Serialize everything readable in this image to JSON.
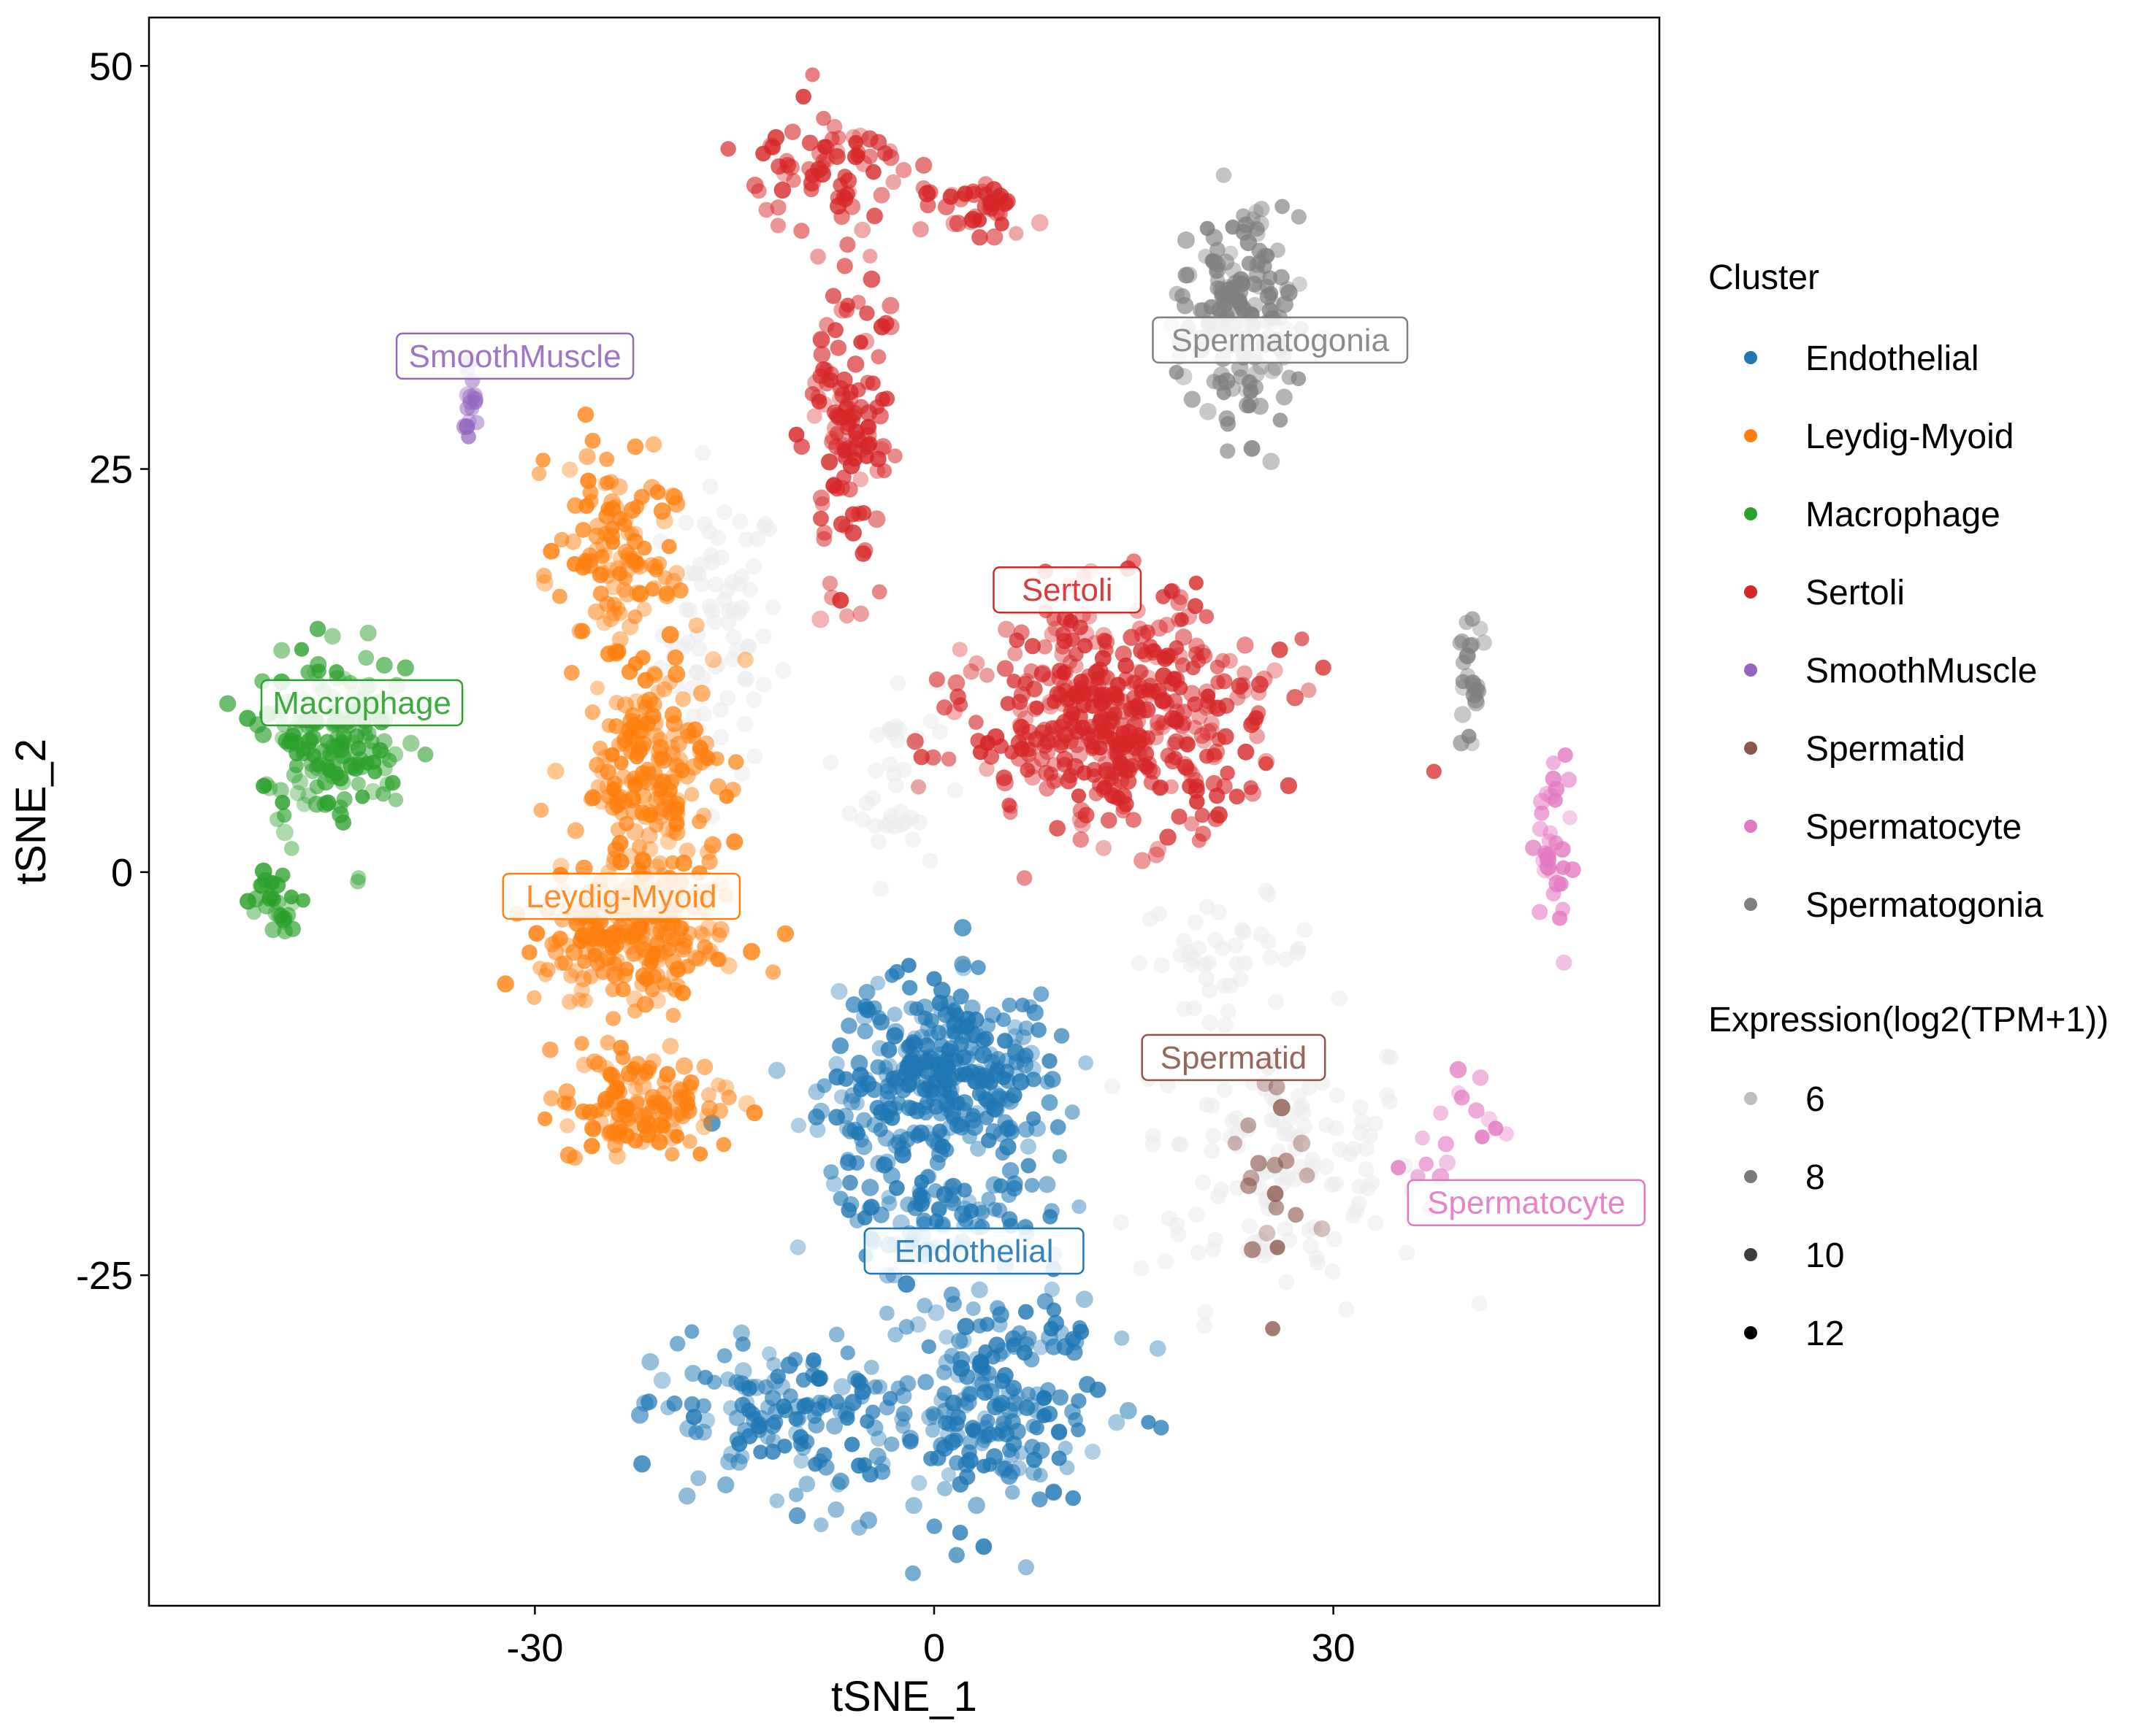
{
  "chart_data": {
    "type": "scatter",
    "title": "",
    "xlabel": "tSNE_1",
    "ylabel": "tSNE_2",
    "xlim": [
      -59,
      54.5
    ],
    "ylim": [
      -45.5,
      53
    ],
    "x_ticks": [
      -30,
      0,
      30
    ],
    "y_ticks": [
      -25,
      0,
      25,
      50
    ],
    "x_tick_labels": [
      "-30",
      "0",
      "30"
    ],
    "y_tick_labels": [
      "-25",
      "0",
      "25",
      "50"
    ],
    "grid": false,
    "legend_position": "right",
    "legend_color_title": "Cluster",
    "legend_size_title": "Expression(log2(TPM+1))",
    "background_color": "#ebebeb",
    "series": [
      {
        "name": "Endothelial",
        "color": "#1f77b4",
        "label": "Endothelial",
        "label_pos": [
          3,
          -23.5
        ],
        "blobs": [
          [
            1,
            -13,
            8,
            5.5,
            330
          ],
          [
            -11,
            -34,
            9,
            4.5,
            140
          ],
          [
            4,
            -33,
            8,
            6.5,
            220
          ],
          [
            0,
            -21,
            7,
            3.5,
            90
          ]
        ]
      },
      {
        "name": "Leydig-Myoid",
        "color": "#ff7f0e",
        "label": "Leydig-Myoid",
        "label_pos": [
          -23.5,
          -1.5
        ],
        "blobs": [
          [
            -24,
            19,
            4,
            6.5,
            120
          ],
          [
            -21,
            6,
            5,
            7.5,
            200
          ],
          [
            -23,
            -4,
            6,
            4,
            230
          ],
          [
            -22,
            -14.5,
            6,
            3,
            130
          ]
        ]
      },
      {
        "name": "Macrophage",
        "color": "#2ca02c",
        "label": "Macrophage",
        "label_pos": [
          -43,
          10.5
        ],
        "blobs": [
          [
            -45,
            8,
            5,
            5,
            170
          ],
          [
            -49.5,
            -2,
            1.6,
            2,
            30
          ]
        ]
      },
      {
        "name": "Sertoli",
        "color": "#d62728",
        "label": "Sertoli",
        "label_pos": [
          10,
          17.5
        ],
        "blobs": [
          [
            -8,
            44,
            5,
            3,
            70
          ],
          [
            3,
            41,
            4,
            2,
            40
          ],
          [
            -6.5,
            28,
            2.5,
            9.5,
            130
          ],
          [
            14,
            9.5,
            10,
            6.5,
            460
          ]
        ]
      },
      {
        "name": "SmoothMuscle",
        "color": "#9467bd",
        "label": "SmoothMuscle",
        "label_pos": [
          -31.5,
          32
        ],
        "blobs": [
          [
            -34.5,
            29,
            0.8,
            2.2,
            16
          ]
        ]
      },
      {
        "name": "Spermatid",
        "color": "#8c564b",
        "label": "Spermatid",
        "label_pos": [
          22.5,
          -11.5
        ],
        "blobs": [
          [
            25,
            -17,
            4,
            7,
            22
          ]
        ]
      },
      {
        "name": "Spermatocyte",
        "color": "#e377c2",
        "label": "Spermatocyte",
        "label_pos": [
          44.5,
          -20.5
        ],
        "blobs": [
          [
            46.5,
            1,
            1.4,
            5.5,
            35
          ],
          [
            40,
            -16,
            4,
            5,
            18
          ]
        ]
      },
      {
        "name": "Spermatogonia",
        "color": "#7f7f7f",
        "label": "Spermatogonia",
        "label_pos": [
          26,
          33
        ],
        "blobs": [
          [
            23,
            34,
            4,
            6,
            170
          ],
          [
            40.5,
            12,
            1,
            3,
            25
          ]
        ]
      }
    ],
    "background_cells": [
      [
        -16,
        15,
        4,
        8,
        80
      ],
      [
        26,
        -18,
        10,
        8,
        130
      ],
      [
        -3,
        6,
        3,
        6,
        40
      ],
      [
        22,
        -5,
        6,
        3,
        40
      ]
    ],
    "size_legend": [
      {
        "label": "6",
        "color": "#bdbdbd"
      },
      {
        "label": "8",
        "color": "#7a7a7a"
      },
      {
        "label": "10",
        "color": "#3d3d3d"
      },
      {
        "label": "12",
        "color": "#000000"
      }
    ]
  }
}
